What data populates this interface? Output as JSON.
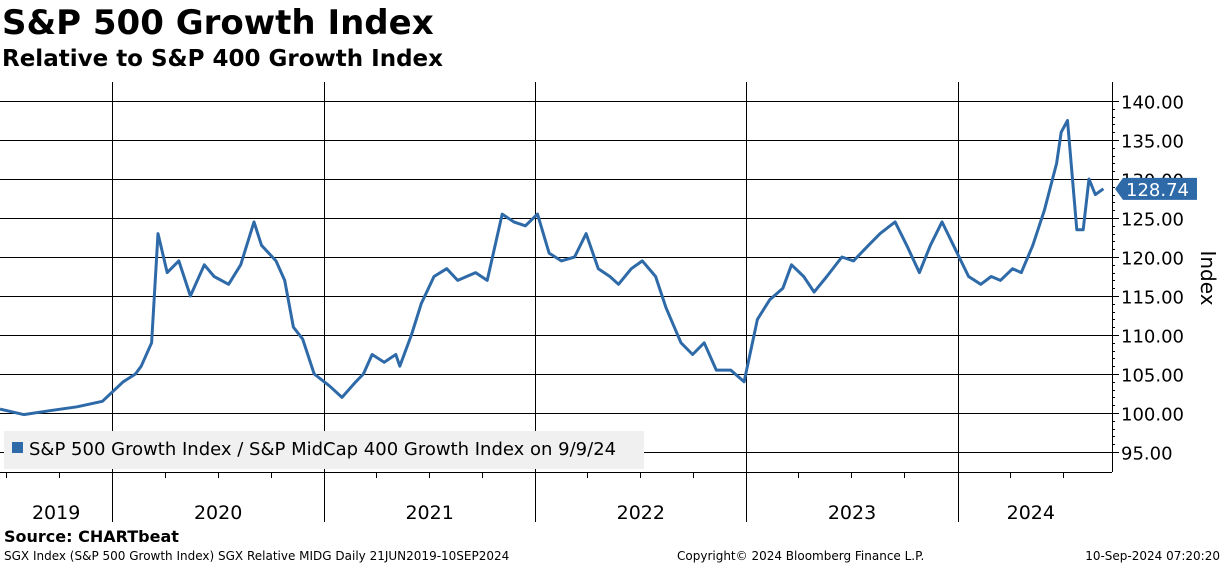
{
  "header": {
    "title": "S&P 500 Growth Index",
    "subtitle": "Relative to S&P 400 Growth Index"
  },
  "footer": {
    "source": "Source: CHARTbeat",
    "left": "SGX Index (S&P 500 Growth Index) SGX Relative MIDG  Daily 21JUN2019-10SEP2024",
    "copyright": "Copyright© 2024 Bloomberg Finance L.P.",
    "timestamp": "10-Sep-2024 07:20:20"
  },
  "colors": {
    "line": "#2e6aa8",
    "badge": "#2e6aa8",
    "grid": "#000000",
    "legend_bg": "#f0f0f0"
  },
  "chart_data": {
    "type": "line",
    "title": "S&P 500 Growth Index",
    "subtitle": "Relative to S&P 400 Growth Index",
    "ylabel": "Index",
    "ylim": [
      95,
      140
    ],
    "yticks": [
      95,
      100,
      105,
      110,
      115,
      120,
      125,
      130,
      135,
      140
    ],
    "ytick_labels": [
      "95.00",
      "100.00",
      "105.00",
      "110.00",
      "115.00",
      "120.00",
      "125.00",
      "130.00",
      "135.00",
      "140.00"
    ],
    "xlim": [
      "2019-06-21",
      "2024-09-10"
    ],
    "year_labels": [
      "2019",
      "2020",
      "2021",
      "2022",
      "2023",
      "2024"
    ],
    "grid": true,
    "axis_side": "right",
    "legend": "bottom-left",
    "last_value": 128.74,
    "last_value_label": "128.74",
    "series": [
      {
        "name": "S&P 500 Growth Index / S&P MidCap 400 Growth Index on 9/9/24",
        "x": [
          "2019-06-21",
          "2019-08-01",
          "2019-09-15",
          "2019-11-01",
          "2019-12-15",
          "2020-01-20",
          "2020-02-10",
          "2020-02-20",
          "2020-03-09",
          "2020-03-20",
          "2020-04-05",
          "2020-04-25",
          "2020-05-15",
          "2020-06-08",
          "2020-06-25",
          "2020-07-20",
          "2020-08-10",
          "2020-09-02",
          "2020-09-15",
          "2020-10-10",
          "2020-10-25",
          "2020-11-09",
          "2020-11-25",
          "2020-12-15",
          "2021-01-10",
          "2021-02-01",
          "2021-02-25",
          "2021-03-10",
          "2021-03-25",
          "2021-04-15",
          "2021-05-05",
          "2021-05-12",
          "2021-06-01",
          "2021-06-18",
          "2021-07-10",
          "2021-08-01",
          "2021-08-20",
          "2021-09-20",
          "2021-10-10",
          "2021-11-05",
          "2021-11-25",
          "2021-12-15",
          "2022-01-05",
          "2022-01-25",
          "2022-02-15",
          "2022-03-10",
          "2022-03-30",
          "2022-04-20",
          "2022-05-10",
          "2022-05-25",
          "2022-06-16",
          "2022-07-05",
          "2022-07-28",
          "2022-08-15",
          "2022-09-10",
          "2022-09-30",
          "2022-10-20",
          "2022-11-10",
          "2022-12-05",
          "2022-12-28",
          "2023-01-20",
          "2023-02-10",
          "2023-03-05",
          "2023-03-20",
          "2023-04-10",
          "2023-04-28",
          "2023-05-20",
          "2023-06-15",
          "2023-07-05",
          "2023-07-31",
          "2023-08-20",
          "2023-09-15",
          "2023-10-05",
          "2023-10-27",
          "2023-11-15",
          "2023-12-05",
          "2023-12-28",
          "2024-01-20",
          "2024-02-10",
          "2024-02-28",
          "2024-03-15",
          "2024-04-05",
          "2024-04-20",
          "2024-05-10",
          "2024-05-30",
          "2024-06-20",
          "2024-06-28",
          "2024-07-09",
          "2024-07-25",
          "2024-08-05",
          "2024-08-15",
          "2024-08-26",
          "2024-09-09"
        ],
        "values": [
          100.5,
          99.8,
          100.3,
          100.8,
          101.5,
          104.0,
          105.0,
          106.0,
          109.0,
          123.0,
          118.0,
          119.5,
          115.0,
          119.0,
          117.5,
          116.5,
          119.0,
          124.5,
          121.5,
          119.5,
          117.0,
          111.0,
          109.5,
          105.0,
          103.5,
          102.0,
          104.0,
          105.0,
          107.5,
          106.5,
          107.5,
          106.0,
          110.0,
          114.0,
          117.5,
          118.5,
          117.0,
          118.0,
          117.0,
          125.5,
          124.5,
          124.0,
          125.5,
          120.5,
          119.5,
          120.0,
          123.0,
          118.5,
          117.5,
          116.5,
          118.5,
          119.5,
          117.5,
          113.5,
          109.0,
          107.5,
          109.0,
          105.5,
          105.5,
          104.0,
          112.0,
          114.5,
          116.0,
          119.0,
          117.5,
          115.5,
          117.5,
          120.0,
          119.5,
          121.5,
          123.0,
          124.5,
          121.5,
          118.0,
          121.5,
          124.5,
          121.0,
          117.5,
          116.5,
          117.5,
          117.0,
          118.5,
          118.0,
          121.5,
          126.0,
          132.0,
          136.0,
          137.5,
          123.5,
          123.5,
          130.0,
          128.0,
          128.74
        ]
      }
    ]
  }
}
